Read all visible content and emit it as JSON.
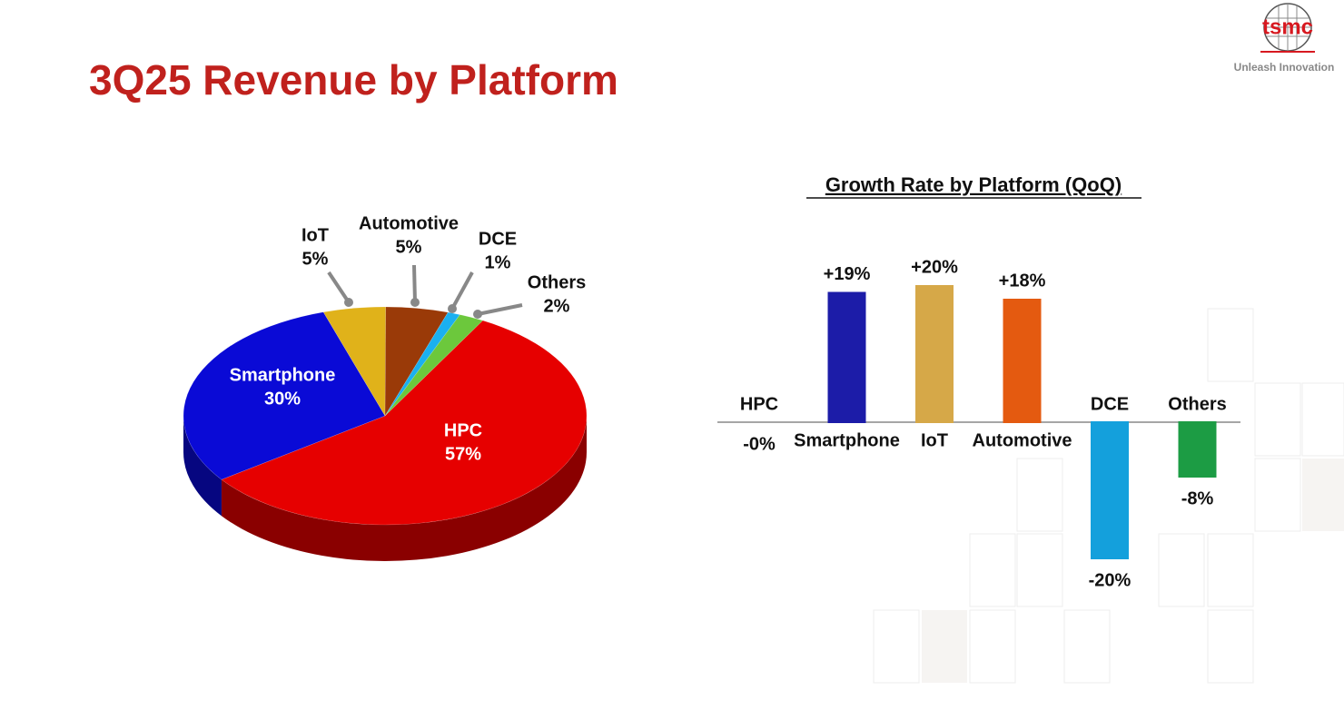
{
  "header": {
    "title": "3Q25 Revenue by Platform",
    "logo": "tsmc",
    "tagline": "Unleash Innovation"
  },
  "chart_data": [
    {
      "type": "pie",
      "categories": [
        "HPC",
        "Smartphone",
        "IoT",
        "Automotive",
        "DCE",
        "Others"
      ],
      "values": [
        57,
        30,
        5,
        5,
        1,
        2
      ],
      "value_labels": [
        "57%",
        "30%",
        "5%",
        "5%",
        "1%",
        "2%"
      ],
      "colors": [
        "#e60000",
        "#0a0ad6",
        "#e0b21a",
        "#9a3a08",
        "#1ab0f0",
        "#6cc83c"
      ]
    },
    {
      "type": "bar",
      "title": "Growth Rate by Platform (QoQ)",
      "categories": [
        "HPC",
        "Smartphone",
        "IoT",
        "Automotive",
        "DCE",
        "Others"
      ],
      "values": [
        0,
        19,
        20,
        18,
        -20,
        -8
      ],
      "value_labels": [
        "-0%",
        "+19%",
        "+20%",
        "+18%",
        "-20%",
        "-8%"
      ],
      "colors": [
        "#d81e1e",
        "#1c1ca8",
        "#d6a848",
        "#e45a10",
        "#14a0dc",
        "#1c9c44"
      ]
    }
  ]
}
